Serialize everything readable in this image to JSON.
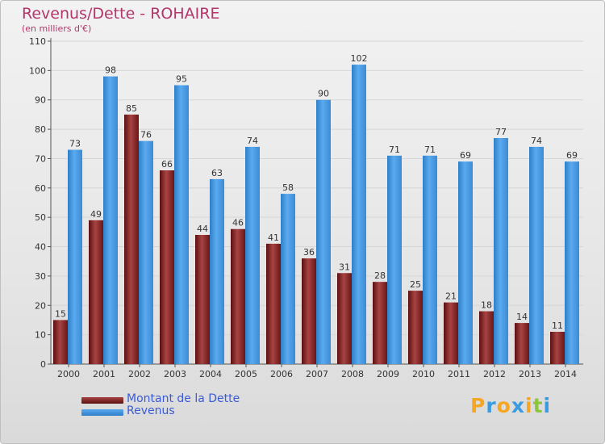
{
  "title": "Revenus/Dette - ROHAIRE",
  "subtitle": "(en milliers d'€)",
  "legend": {
    "debt_label": "Montant de la Dette",
    "revenue_label": "Revenus"
  },
  "logo": {
    "letters": [
      "P",
      "r",
      "o",
      "x",
      "i",
      "t",
      "i"
    ],
    "colors": [
      "#f5a623",
      "#3a9be0",
      "#f5a623",
      "#3a9be0",
      "#f5a623",
      "#8cc63f",
      "#3a9be0"
    ]
  },
  "colors": {
    "debt": "#7a1e1e",
    "debt_light": "#a84444",
    "revenue": "#3d8fdb",
    "revenue_light": "#5aaaf0",
    "title": "#b3366b"
  },
  "chart_data": {
    "type": "bar",
    "categories": [
      "2000",
      "2001",
      "2002",
      "2003",
      "2004",
      "2005",
      "2006",
      "2007",
      "2008",
      "2009",
      "2010",
      "2011",
      "2012",
      "2013",
      "2014"
    ],
    "series": [
      {
        "name": "Montant de la Dette",
        "values": [
          15,
          49,
          85,
          66,
          44,
          46,
          41,
          36,
          31,
          28,
          25,
          21,
          18,
          14,
          11
        ]
      },
      {
        "name": "Revenus",
        "values": [
          73,
          98,
          76,
          95,
          63,
          74,
          58,
          90,
          102,
          71,
          71,
          69,
          77,
          74,
          69
        ]
      }
    ],
    "yticks": [
      0,
      10,
      20,
      30,
      40,
      50,
      60,
      70,
      80,
      90,
      100,
      110
    ],
    "ylim": [
      0,
      110
    ],
    "grid": true,
    "legend_position": "bottom-left"
  }
}
